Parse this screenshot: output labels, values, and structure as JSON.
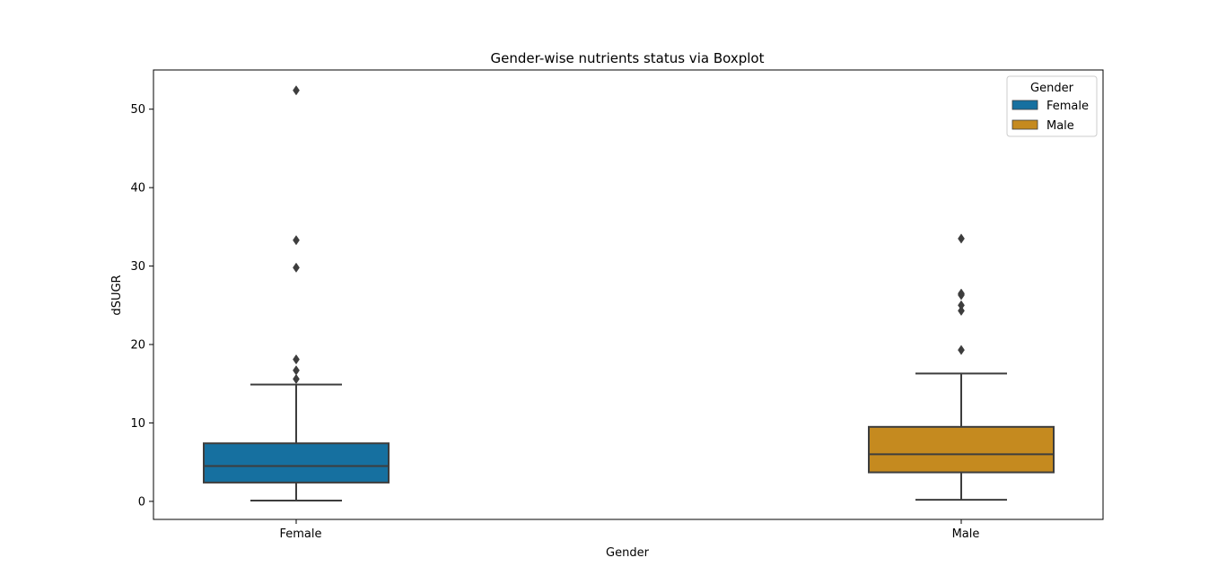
{
  "chart_data": {
    "type": "box",
    "title": "Gender-wise nutrients status via Boxplot",
    "xlabel": "Gender",
    "ylabel": "dSUGR",
    "ylim": [
      -2.3,
      55.0
    ],
    "yticks": [
      0,
      10,
      20,
      30,
      40,
      50
    ],
    "categories": [
      "Female",
      "Male"
    ],
    "legend": {
      "title": "Gender",
      "position": "top-right",
      "entries": [
        "Female",
        "Male"
      ]
    },
    "grid": false,
    "series": [
      {
        "name": "Female",
        "color": "#1670a0",
        "category": "Female",
        "whisker_low": 0.1,
        "q1": 2.4,
        "median": 4.5,
        "q3": 7.4,
        "whisker_high": 14.9,
        "outliers": [
          15.6,
          16.7,
          18.1,
          29.8,
          33.3,
          52.4
        ]
      },
      {
        "name": "Male",
        "color": "#c58a1f",
        "category": "Male",
        "whisker_low": 0.2,
        "q1": 3.7,
        "median": 6.0,
        "q3": 9.5,
        "whisker_high": 16.3,
        "outliers": [
          19.3,
          24.3,
          25.0,
          26.3,
          26.5,
          33.5
        ]
      }
    ]
  }
}
